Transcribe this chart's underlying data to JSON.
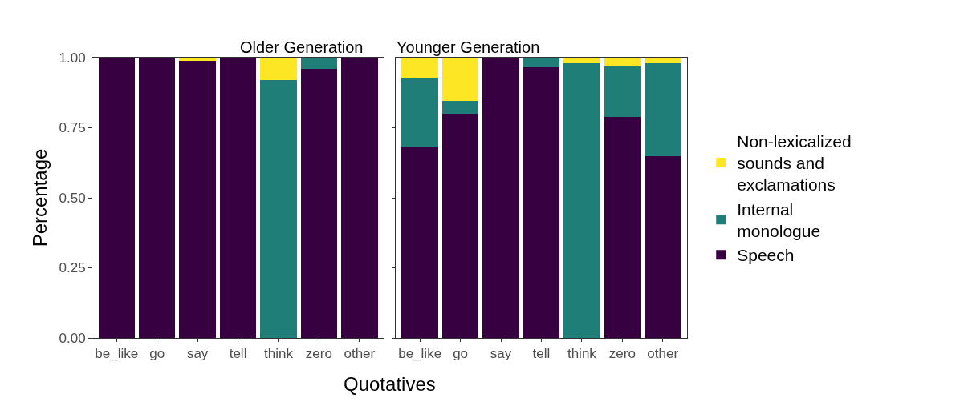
{
  "chart_data": [
    {
      "type": "bar",
      "title": "Older Generation",
      "xlabel": "Quotatives",
      "ylabel": "Percentage",
      "stacked": true,
      "legend": "right",
      "categories": [
        "be_like",
        "go",
        "say",
        "tell",
        "think",
        "zero",
        "other"
      ],
      "ylim": [
        0,
        1
      ],
      "yticks": [
        {
          "value": 0,
          "label": "0.00"
        },
        {
          "value": 0.25,
          "label": "0.25"
        },
        {
          "value": 0.5,
          "label": "0.50"
        },
        {
          "value": 0.75,
          "label": "0.75"
        },
        {
          "value": 1,
          "label": "1.00"
        }
      ],
      "series": [
        {
          "name": "Speech",
          "color": "#370040",
          "values": [
            1,
            1,
            0.99,
            1,
            0,
            0.96,
            1
          ]
        },
        {
          "name": "Internal monologue",
          "color": "#1f7f78",
          "values": [
            0,
            0,
            0,
            0,
            0.92,
            0.04,
            0
          ]
        },
        {
          "name": "Non-lexicalized sounds and exclamations",
          "color": "#fde725",
          "values": [
            0,
            0,
            0.01,
            0,
            0.08,
            0,
            0
          ]
        }
      ]
    },
    {
      "type": "bar",
      "title": "Younger Generation",
      "stacked": true,
      "legend": "right",
      "tick_labels": "x",
      "categories": [
        "be_like",
        "go",
        "say",
        "tell",
        "think",
        "zero",
        "other"
      ],
      "ylim": [
        0,
        1
      ],
      "yticks": [
        {
          "value": 0,
          "label": null
        },
        {
          "value": 0.25,
          "label": null
        },
        {
          "value": 0.5,
          "label": null
        },
        {
          "value": 0.75,
          "label": null
        },
        {
          "value": 1,
          "label": null
        }
      ],
      "series": [
        {
          "name": "Speech",
          "color": "#370040",
          "values": [
            0.68,
            0.8,
            1,
            0.965,
            0,
            0.79,
            0.65
          ]
        },
        {
          "name": "Internal monologue",
          "color": "#1f7f78",
          "values": [
            0.25,
            0.045,
            0,
            0.035,
            0.98,
            0.18,
            0.33
          ]
        },
        {
          "name": "Non-lexicalized sounds and exclamations",
          "color": "#fde725",
          "values": [
            0.07,
            0.155,
            0,
            0,
            0.02,
            0.03,
            0.02
          ]
        }
      ]
    }
  ]
}
